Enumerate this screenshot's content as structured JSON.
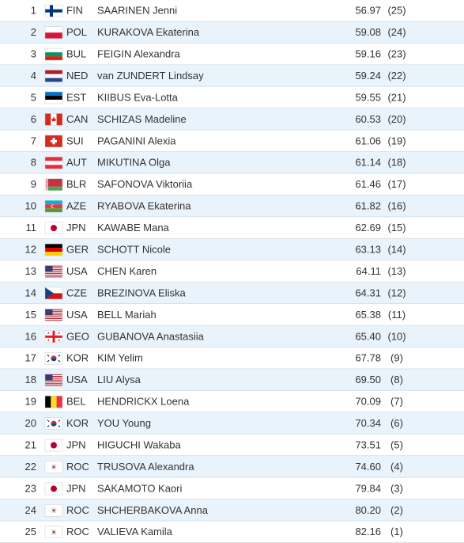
{
  "table": {
    "rows": [
      [
        "1",
        "FIN",
        "SAARINEN Jenni",
        "56.97",
        "(25)"
      ],
      [
        "2",
        "POL",
        "KURAKOVA Ekaterina",
        "59.08",
        "(24)"
      ],
      [
        "3",
        "BUL",
        "FEIGIN Alexandra",
        "59.16",
        "(23)"
      ],
      [
        "4",
        "NED",
        "van ZUNDERT Lindsay",
        "59.24",
        "(22)"
      ],
      [
        "5",
        "EST",
        "KIIBUS Eva-Lotta",
        "59.55",
        "(21)"
      ],
      [
        "6",
        "CAN",
        "SCHIZAS Madeline",
        "60.53",
        "(20)"
      ],
      [
        "7",
        "SUI",
        "PAGANINI Alexia",
        "61.06",
        "(19)"
      ],
      [
        "8",
        "AUT",
        "MIKUTINA Olga",
        "61.14",
        "(18)"
      ],
      [
        "9",
        "BLR",
        "SAFONOVA Viktoriia",
        "61.46",
        "(17)"
      ],
      [
        "10",
        "AZE",
        "RYABOVA Ekaterina",
        "61.82",
        "(16)"
      ],
      [
        "11",
        "JPN",
        "KAWABE Mana",
        "62.69",
        "(15)"
      ],
      [
        "12",
        "GER",
        "SCHOTT Nicole",
        "63.13",
        "(14)"
      ],
      [
        "13",
        "USA",
        "CHEN Karen",
        "64.11",
        "(13)"
      ],
      [
        "14",
        "CZE",
        "BREZINOVA Eliska",
        "64.31",
        "(12)"
      ],
      [
        "15",
        "USA",
        "BELL Mariah",
        "65.38",
        "(11)"
      ],
      [
        "16",
        "GEO",
        "GUBANOVA Anastasiia",
        "65.40",
        "(10)"
      ],
      [
        "17",
        "KOR",
        "KIM Yelim",
        "67.78",
        "(9)"
      ],
      [
        "18",
        "USA",
        "LIU Alysa",
        "69.50",
        "(8)"
      ],
      [
        "19",
        "BEL",
        "HENDRICKX Loena",
        "70.09",
        "(7)"
      ],
      [
        "20",
        "KOR",
        "YOU Young",
        "70.34",
        "(6)"
      ],
      [
        "21",
        "JPN",
        "HIGUCHI Wakaba",
        "73.51",
        "(5)"
      ],
      [
        "22",
        "ROC",
        "TRUSOVA Alexandra",
        "74.60",
        "(4)"
      ],
      [
        "23",
        "JPN",
        "SAKAMOTO Kaori",
        "79.84",
        "(3)"
      ],
      [
        "24",
        "ROC",
        "SHCHERBAKOVA Anna",
        "80.20",
        "(2)"
      ],
      [
        "25",
        "ROC",
        "VALIEVA Kamila",
        "82.16",
        "(1)"
      ]
    ]
  }
}
